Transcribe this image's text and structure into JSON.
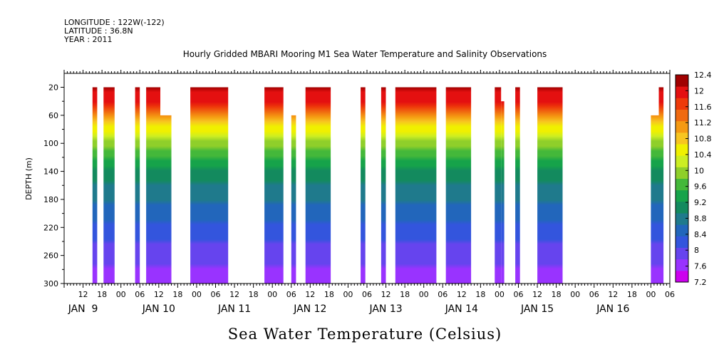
{
  "chart_data": {
    "type": "heatmap",
    "meta_lines": [
      "LONGITUDE : 122W(-122)",
      "LATITUDE : 36.8N",
      "YEAR : 2011"
    ],
    "title": "Hourly Gridded MBARI Mooring M1 Sea Water Temperature and Salinity Observations",
    "xlabel": "",
    "ylabel": "DEPTH (m)",
    "colorbar_title": "Sea Water Temperature (Celsius)",
    "x_range_hours": [
      0,
      192
    ],
    "hour_tick_labels": [
      "12",
      "18",
      "00",
      "06",
      "12",
      "18",
      "00",
      "06",
      "12",
      "18",
      "00",
      "06",
      "12",
      "18",
      "00",
      "06",
      "12",
      "18",
      "00",
      "06",
      "12",
      "18",
      "00",
      "06",
      "12",
      "18",
      "00",
      "06",
      "12",
      "18",
      "00",
      "06"
    ],
    "day_labels": [
      "JAN  9",
      "JAN 10",
      "JAN 11",
      "JAN 12",
      "JAN 13",
      "JAN 14",
      "JAN 15",
      "JAN 16"
    ],
    "ylim": [
      300,
      0
    ],
    "y_ticks": [
      20,
      60,
      100,
      140,
      180,
      220,
      260,
      300
    ],
    "colorbar_ticks": [
      7.2,
      7.6,
      8,
      8.4,
      8.8,
      9.2,
      9.6,
      10,
      10.4,
      10.8,
      11.2,
      11.6,
      12,
      12.4
    ],
    "colorbar_labels": [
      "7.2",
      "7.6",
      "8",
      "8.4",
      "8.8",
      "9.2",
      "9.6",
      "10",
      "10.4",
      "10.8",
      "11.2",
      "11.6",
      "12",
      "12.4"
    ],
    "temperature_profile": {
      "depths": [
        20,
        40,
        60,
        80,
        100,
        120,
        140,
        160,
        180,
        200,
        220,
        240,
        260,
        280,
        300
      ],
      "values": [
        12.2,
        11.9,
        11.2,
        10.5,
        10.0,
        9.6,
        9.2,
        8.9,
        8.7,
        8.5,
        8.3,
        8.1,
        7.9,
        7.7,
        7.5
      ]
    },
    "data_segments": [
      {
        "start_hour": 9,
        "end_hour": 10.5,
        "top_depth": 20
      },
      {
        "start_hour": 12.5,
        "end_hour": 16,
        "top_depth": 20
      },
      {
        "start_hour": 22.5,
        "end_hour": 24,
        "top_depth": 20
      },
      {
        "start_hour": 26,
        "end_hour": 30.5,
        "top_depth": 20
      },
      {
        "start_hour": 30.5,
        "end_hour": 34,
        "top_depth": 60
      },
      {
        "start_hour": 40,
        "end_hour": 52,
        "top_depth": 20
      },
      {
        "start_hour": 63.5,
        "end_hour": 69.5,
        "top_depth": 20
      },
      {
        "start_hour": 72,
        "end_hour": 73.5,
        "top_depth": 60
      },
      {
        "start_hour": 76.5,
        "end_hour": 84.5,
        "top_depth": 20
      },
      {
        "start_hour": 94,
        "end_hour": 95.5,
        "top_depth": 20
      },
      {
        "start_hour": 100.5,
        "end_hour": 102,
        "top_depth": 20
      },
      {
        "start_hour": 105,
        "end_hour": 118,
        "top_depth": 20
      },
      {
        "start_hour": 121,
        "end_hour": 129,
        "top_depth": 20
      },
      {
        "start_hour": 136.5,
        "end_hour": 138.5,
        "top_depth": 20
      },
      {
        "start_hour": 138.5,
        "end_hour": 139.5,
        "top_depth": 40
      },
      {
        "start_hour": 143,
        "end_hour": 144.5,
        "top_depth": 20
      },
      {
        "start_hour": 150,
        "end_hour": 158,
        "top_depth": 20
      },
      {
        "start_hour": 186,
        "end_hour": 188.5,
        "top_depth": 60
      },
      {
        "start_hour": 188.5,
        "end_hour": 190,
        "top_depth": 20
      }
    ]
  }
}
